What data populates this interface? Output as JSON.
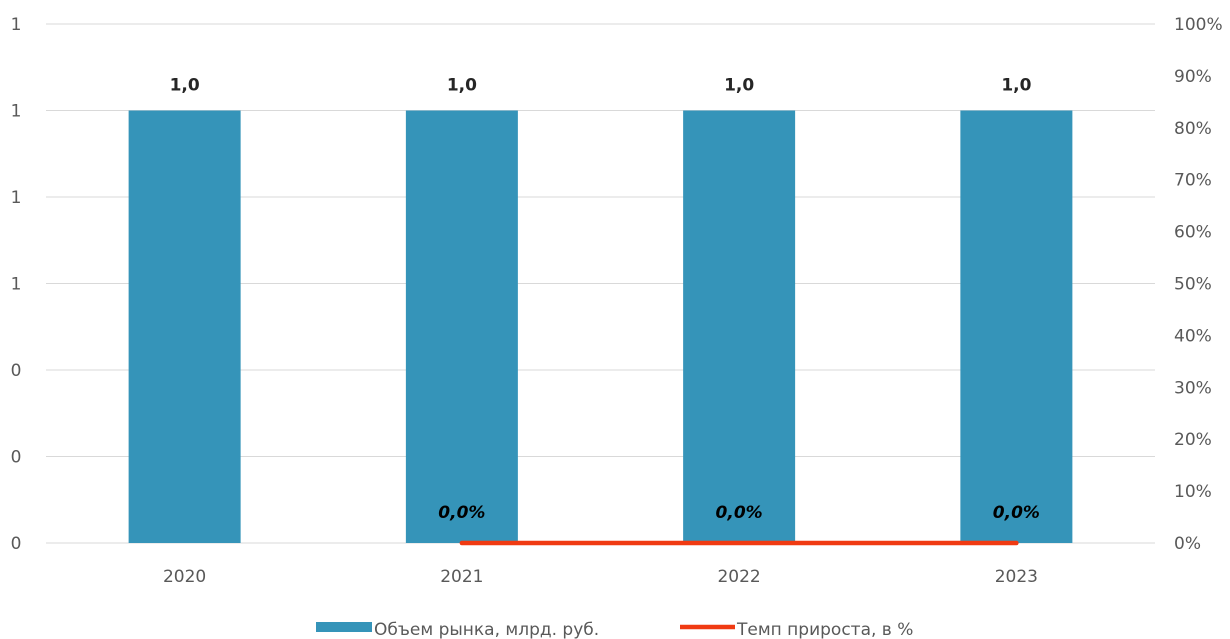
{
  "chart_data": {
    "type": "bar",
    "categories": [
      "2020",
      "2021",
      "2022",
      "2023"
    ],
    "series": [
      {
        "name": "Объем рынка, млрд. руб.",
        "type": "bar",
        "axis": "left",
        "values": [
          1.0,
          1.0,
          1.0,
          1.0
        ],
        "data_labels": [
          "1,0",
          "1,0",
          "1,0",
          "1,0"
        ],
        "color": "#3594B9"
      },
      {
        "name": "Темп прироста, в %",
        "type": "line",
        "axis": "right",
        "values": [
          null,
          0.0,
          0.0,
          0.0
        ],
        "data_labels": [
          "",
          "0,0%",
          "0,0%",
          "0,0%"
        ],
        "color": "#F03A12"
      }
    ],
    "left_axis": {
      "ylim": [
        0,
        1.2
      ],
      "ticks": [
        0,
        0.2,
        0.4,
        0.6,
        0.8,
        1.0,
        1.2
      ],
      "tick_labels": [
        "0",
        "0",
        "0",
        "1",
        "1",
        "1",
        "1"
      ]
    },
    "right_axis": {
      "ylim": [
        0,
        100
      ],
      "ticks": [
        0,
        10,
        20,
        30,
        40,
        50,
        60,
        70,
        80,
        90,
        100
      ],
      "tick_labels": [
        "0%",
        "10%",
        "20%",
        "30%",
        "40%",
        "50%",
        "60%",
        "70%",
        "80%",
        "90%",
        "100%"
      ]
    },
    "grid": true,
    "legend_position": "bottom",
    "colors": {
      "grid": "#D9D9D9",
      "axis_text": "#595959"
    }
  }
}
